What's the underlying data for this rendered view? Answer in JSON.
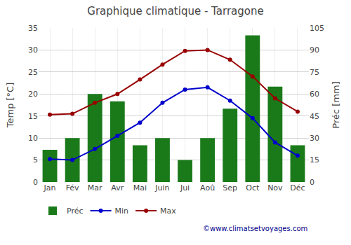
{
  "chart_data": {
    "type": "bar",
    "title": "Graphique climatique - Tarragone",
    "categories": [
      "Jan",
      "Fév",
      "Mar",
      "Avr",
      "Mai",
      "Juin",
      "Jui",
      "Aoû",
      "Sep",
      "Oct",
      "Nov",
      "Déc"
    ],
    "series": [
      {
        "name": "Préc",
        "type": "bar",
        "color": "#1a7a1a",
        "axis": "y2",
        "values": [
          22,
          30,
          60,
          55,
          25,
          30,
          15,
          30,
          50,
          100,
          65,
          25
        ]
      },
      {
        "name": "Min",
        "type": "line",
        "color": "#0000cc",
        "marker": "circle",
        "line_style": "solid",
        "values": [
          5.2,
          5.0,
          7.5,
          10.5,
          13.5,
          18,
          21,
          21.5,
          18.5,
          14.5,
          9.0,
          6.0
        ]
      },
      {
        "name": "Max",
        "type": "line",
        "color": "#990000",
        "marker": "circle",
        "line_style": "solid",
        "values": [
          15.3,
          15.5,
          18,
          20,
          23.3,
          26.7,
          29.8,
          30.0,
          27.8,
          24.0,
          19.0,
          16.0
        ]
      }
    ],
    "ylabel": "Temp [°C]",
    "y2label": "Préc [mm]",
    "ylim": [
      0,
      35
    ],
    "yticks": [
      0,
      5,
      10,
      15,
      20,
      25,
      30,
      35
    ],
    "y2lim": [
      0,
      105
    ],
    "y2ticks": [
      0,
      15,
      30,
      45,
      60,
      75,
      90,
      105
    ],
    "grid": true,
    "legend": "bottom",
    "annotations": [
      "©www.climatsetvoyages.com"
    ]
  }
}
